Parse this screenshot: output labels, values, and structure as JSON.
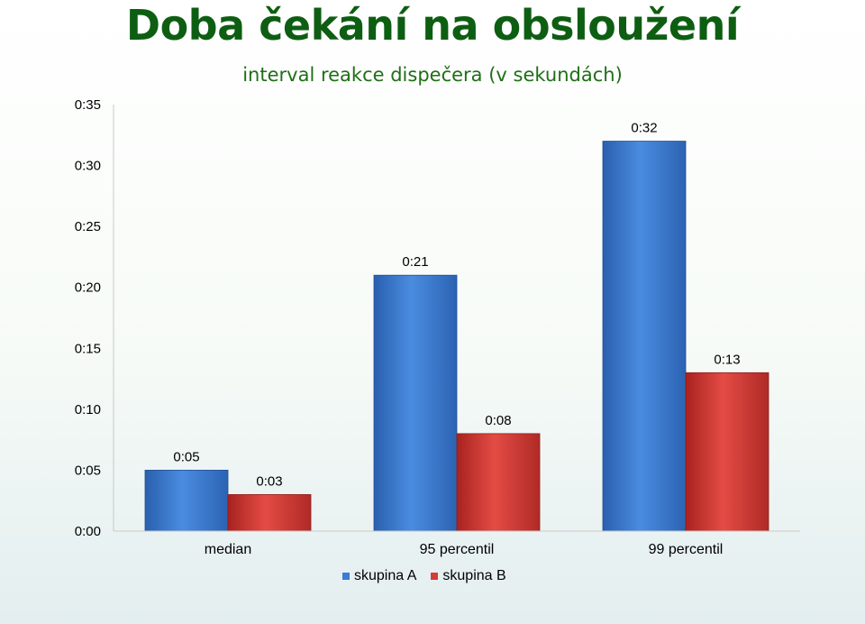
{
  "chart_data": {
    "type": "bar",
    "title": "Doba čekání na obsloužení",
    "subtitle": "interval reakce dispečera (v sekundách)",
    "xlabel": "",
    "ylabel": "",
    "categories": [
      "median",
      "95 percentil",
      "99 percentil"
    ],
    "series": [
      {
        "name": "skupina A",
        "color": "#3a7bd5",
        "values": [
          5,
          21,
          32
        ],
        "labels": [
          "0:05",
          "0:21",
          "0:32"
        ]
      },
      {
        "name": "skupina B",
        "color": "#d63c36",
        "values": [
          3,
          8,
          13
        ],
        "labels": [
          "0:03",
          "0:08",
          "0:13"
        ]
      }
    ],
    "ylim": [
      0,
      35
    ],
    "yticks": [
      0,
      5,
      10,
      15,
      20,
      25,
      30,
      35
    ],
    "ytick_labels": [
      "0:00",
      "0:05",
      "0:10",
      "0:15",
      "0:20",
      "0:25",
      "0:30",
      "0:35"
    ],
    "grid": false,
    "legend_position": "bottom"
  }
}
